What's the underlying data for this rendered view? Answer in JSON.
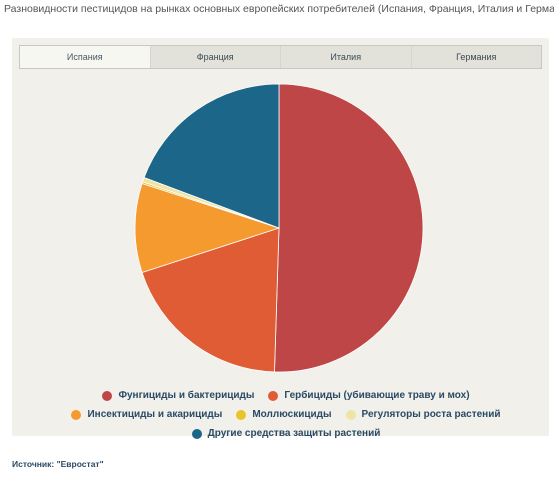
{
  "title": "Разновидности пестицидов на рынках основных европейских потребителей (Испания, Франция, Италия и Германия)",
  "tabs": [
    {
      "label": "Испания",
      "active": true
    },
    {
      "label": "Франция",
      "active": false
    },
    {
      "label": "Италия",
      "active": false
    },
    {
      "label": "Германия",
      "active": false
    }
  ],
  "chart_data": {
    "type": "pie",
    "categories": [
      "Фунгициды и бактерициды",
      "Гербициды (убивающие траву и мох)",
      "Инсектициды и акарициды",
      "Моллюскициды",
      "Регуляторы роста растений",
      "Другие средства защиты растений"
    ],
    "values": [
      50.5,
      19.5,
      10,
      0.2,
      0.5,
      19.3
    ],
    "colors": [
      "#bf4646",
      "#df5c35",
      "#f59a2e",
      "#e8c42a",
      "#efe3a6",
      "#1b6689"
    ],
    "legend_position": "bottom"
  },
  "source": "Источник: \"Евростат\""
}
